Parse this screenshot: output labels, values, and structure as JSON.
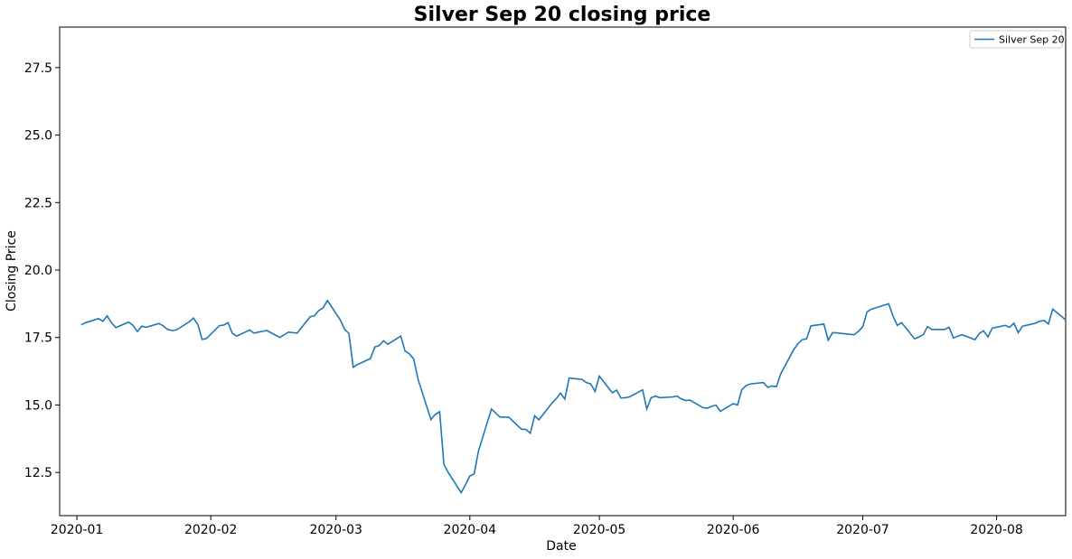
{
  "chart_data": {
    "type": "line",
    "title": "Silver Sep 20 closing price",
    "xlabel": "Date",
    "ylabel": "Closing Price",
    "x_type": "date",
    "xlim": [
      "2019-12-28",
      "2020-08-17"
    ],
    "ylim": [
      10.9,
      29.0
    ],
    "x_ticks": [
      "2020-01-01",
      "2020-02-01",
      "2020-03-01",
      "2020-04-01",
      "2020-05-01",
      "2020-06-01",
      "2020-07-01",
      "2020-08-01"
    ],
    "x_tick_labels": [
      "2020-01",
      "2020-02",
      "2020-03",
      "2020-04",
      "2020-05",
      "2020-06",
      "2020-07",
      "2020-08"
    ],
    "y_ticks": [
      12.5,
      15.0,
      17.5,
      20.0,
      22.5,
      25.0,
      27.5
    ],
    "y_tick_labels": [
      "12.5",
      "15.0",
      "17.5",
      "20.0",
      "22.5",
      "25.0",
      "27.5"
    ],
    "grid": false,
    "legend_position": "top-right",
    "series": [
      {
        "name": "Silver Sep 20",
        "color": "#1f77b4",
        "points": [
          [
            "2020-01-02",
            17.97
          ],
          [
            "2020-01-03",
            18.05
          ],
          [
            "2020-01-06",
            18.2
          ],
          [
            "2020-01-07",
            18.1
          ],
          [
            "2020-01-08",
            18.3
          ],
          [
            "2020-01-09",
            18.05
          ],
          [
            "2020-01-10",
            17.87
          ],
          [
            "2020-01-13",
            18.07
          ],
          [
            "2020-01-14",
            17.95
          ],
          [
            "2020-01-15",
            17.72
          ],
          [
            "2020-01-16",
            17.92
          ],
          [
            "2020-01-17",
            17.88
          ],
          [
            "2020-01-20",
            18.02
          ],
          [
            "2020-01-21",
            17.93
          ],
          [
            "2020-01-22",
            17.8
          ],
          [
            "2020-01-23",
            17.76
          ],
          [
            "2020-01-24",
            17.78
          ],
          [
            "2020-01-27",
            18.08
          ],
          [
            "2020-01-28",
            18.22
          ],
          [
            "2020-01-29",
            17.98
          ],
          [
            "2020-01-30",
            17.43
          ],
          [
            "2020-01-31",
            17.46
          ],
          [
            "2020-02-03",
            17.94
          ],
          [
            "2020-02-04",
            17.96
          ],
          [
            "2020-02-05",
            18.05
          ],
          [
            "2020-02-06",
            17.65
          ],
          [
            "2020-02-07",
            17.55
          ],
          [
            "2020-02-10",
            17.78
          ],
          [
            "2020-02-11",
            17.66
          ],
          [
            "2020-02-12",
            17.7
          ],
          [
            "2020-02-13",
            17.73
          ],
          [
            "2020-02-14",
            17.76
          ],
          [
            "2020-02-17",
            17.5
          ],
          [
            "2020-02-18",
            17.6
          ],
          [
            "2020-02-19",
            17.7
          ],
          [
            "2020-02-20",
            17.68
          ],
          [
            "2020-02-21",
            17.66
          ],
          [
            "2020-02-24",
            18.27
          ],
          [
            "2020-02-25",
            18.3
          ],
          [
            "2020-02-26",
            18.5
          ],
          [
            "2020-02-27",
            18.6
          ],
          [
            "2020-02-28",
            18.87
          ],
          [
            "2020-03-02",
            18.15
          ],
          [
            "2020-03-03",
            17.8
          ],
          [
            "2020-03-04",
            17.65
          ],
          [
            "2020-03-05",
            16.4
          ],
          [
            "2020-03-06",
            16.5
          ],
          [
            "2020-03-09",
            16.72
          ],
          [
            "2020-03-10",
            17.15
          ],
          [
            "2020-03-11",
            17.2
          ],
          [
            "2020-03-12",
            17.38
          ],
          [
            "2020-03-13",
            17.25
          ],
          [
            "2020-03-16",
            17.55
          ],
          [
            "2020-03-17",
            17.0
          ],
          [
            "2020-03-18",
            16.9
          ],
          [
            "2020-03-19",
            16.7
          ],
          [
            "2020-03-20",
            15.95
          ],
          [
            "2020-03-23",
            14.46
          ],
          [
            "2020-03-24",
            14.65
          ],
          [
            "2020-03-25",
            14.75
          ],
          [
            "2020-03-26",
            12.8
          ],
          [
            "2020-03-27",
            12.5
          ],
          [
            "2020-03-30",
            11.75
          ],
          [
            "2020-03-31",
            12.05
          ],
          [
            "2020-04-01",
            12.37
          ],
          [
            "2020-04-02",
            12.45
          ],
          [
            "2020-04-03",
            13.3
          ],
          [
            "2020-04-06",
            14.85
          ],
          [
            "2020-04-07",
            14.7
          ],
          [
            "2020-04-08",
            14.55
          ],
          [
            "2020-04-09",
            14.55
          ],
          [
            "2020-04-10",
            14.55
          ],
          [
            "2020-04-13",
            14.1
          ],
          [
            "2020-04-14",
            14.1
          ],
          [
            "2020-04-15",
            13.95
          ],
          [
            "2020-04-16",
            14.6
          ],
          [
            "2020-04-17",
            14.45
          ],
          [
            "2020-04-20",
            15.07
          ],
          [
            "2020-04-21",
            15.23
          ],
          [
            "2020-04-22",
            15.44
          ],
          [
            "2020-04-23",
            15.22
          ],
          [
            "2020-04-24",
            16.0
          ],
          [
            "2020-04-27",
            15.95
          ],
          [
            "2020-04-28",
            15.83
          ],
          [
            "2020-04-29",
            15.78
          ],
          [
            "2020-04-30",
            15.5
          ],
          [
            "2020-05-01",
            16.07
          ],
          [
            "2020-05-04",
            15.45
          ],
          [
            "2020-05-05",
            15.55
          ],
          [
            "2020-05-06",
            15.26
          ],
          [
            "2020-05-07",
            15.27
          ],
          [
            "2020-05-08",
            15.3
          ],
          [
            "2020-05-11",
            15.56
          ],
          [
            "2020-05-12",
            14.85
          ],
          [
            "2020-05-13",
            15.27
          ],
          [
            "2020-05-14",
            15.33
          ],
          [
            "2020-05-15",
            15.27
          ],
          [
            "2020-05-18",
            15.3
          ],
          [
            "2020-05-19",
            15.33
          ],
          [
            "2020-05-20",
            15.22
          ],
          [
            "2020-05-21",
            15.17
          ],
          [
            "2020-05-22",
            15.18
          ],
          [
            "2020-05-25",
            14.9
          ],
          [
            "2020-05-26",
            14.88
          ],
          [
            "2020-05-27",
            14.95
          ],
          [
            "2020-05-28",
            15.0
          ],
          [
            "2020-05-29",
            14.76
          ],
          [
            "2020-06-01",
            15.05
          ],
          [
            "2020-06-02",
            15.0
          ],
          [
            "2020-06-03",
            15.57
          ],
          [
            "2020-06-04",
            15.72
          ],
          [
            "2020-06-05",
            15.78
          ],
          [
            "2020-06-08",
            15.83
          ],
          [
            "2020-06-09",
            15.65
          ],
          [
            "2020-06-10",
            15.7
          ],
          [
            "2020-06-11",
            15.68
          ],
          [
            "2020-06-12",
            16.15
          ],
          [
            "2020-06-15",
            17.05
          ],
          [
            "2020-06-16",
            17.27
          ],
          [
            "2020-06-17",
            17.42
          ],
          [
            "2020-06-18",
            17.45
          ],
          [
            "2020-06-19",
            17.93
          ],
          [
            "2020-06-22",
            18.0
          ],
          [
            "2020-06-23",
            17.4
          ],
          [
            "2020-06-24",
            17.68
          ],
          [
            "2020-06-25",
            17.67
          ],
          [
            "2020-06-26",
            17.65
          ],
          [
            "2020-06-29",
            17.6
          ],
          [
            "2020-06-30",
            17.73
          ],
          [
            "2020-07-01",
            17.9
          ],
          [
            "2020-07-02",
            18.45
          ],
          [
            "2020-07-03",
            18.55
          ],
          [
            "2020-07-06",
            18.7
          ],
          [
            "2020-07-07",
            18.75
          ],
          [
            "2020-07-08",
            18.3
          ],
          [
            "2020-07-09",
            17.95
          ],
          [
            "2020-07-10",
            18.05
          ],
          [
            "2020-07-13",
            17.45
          ],
          [
            "2020-07-14",
            17.52
          ],
          [
            "2020-07-15",
            17.6
          ],
          [
            "2020-07-16",
            17.9
          ],
          [
            "2020-07-17",
            17.8
          ],
          [
            "2020-07-20",
            17.8
          ],
          [
            "2020-07-21",
            17.88
          ],
          [
            "2020-07-22",
            17.48
          ],
          [
            "2020-07-23",
            17.55
          ],
          [
            "2020-07-24",
            17.6
          ],
          [
            "2020-07-27",
            17.42
          ],
          [
            "2020-07-28",
            17.65
          ],
          [
            "2020-07-29",
            17.75
          ],
          [
            "2020-07-30",
            17.52
          ],
          [
            "2020-07-31",
            17.85
          ],
          [
            "2020-08-03",
            17.95
          ],
          [
            "2020-08-04",
            17.88
          ],
          [
            "2020-08-05",
            18.03
          ],
          [
            "2020-08-06",
            17.68
          ],
          [
            "2020-08-07",
            17.92
          ],
          [
            "2020-08-10",
            18.03
          ],
          [
            "2020-08-11",
            18.1
          ],
          [
            "2020-08-12",
            18.13
          ],
          [
            "2020-08-13",
            18.0
          ],
          [
            "2020-08-14",
            18.55
          ],
          [
            "2020-08-17",
            18.15
          ]
        ]
      }
    ]
  },
  "legend": {
    "label": "Silver Sep 20"
  }
}
